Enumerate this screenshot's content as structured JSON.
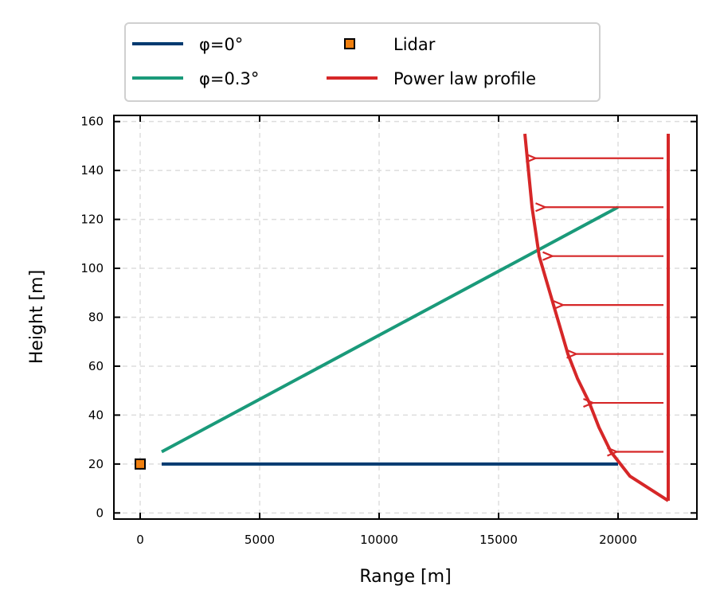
{
  "chart_data": {
    "type": "line",
    "title": "",
    "xlabel": "Range [m]",
    "ylabel": "Height [m]",
    "xlim": [
      -1100,
      23300
    ],
    "ylim": [
      -2.5,
      162.5
    ],
    "xticks": [
      0,
      5000,
      10000,
      15000,
      20000
    ],
    "yticks": [
      0,
      20,
      40,
      60,
      80,
      100,
      120,
      140,
      160
    ],
    "grid": true,
    "legend": {
      "position": "top-center",
      "entries": [
        {
          "label": "φ=0°",
          "color": "#003a70",
          "marker": "line"
        },
        {
          "label": "Lidar",
          "color": "#f07f0e",
          "marker": "square"
        },
        {
          "label": "φ=0.3°",
          "color": "#1a9a7a",
          "marker": "line"
        },
        {
          "label": "Power law profile",
          "color": "#d62728",
          "marker": "line"
        }
      ]
    },
    "series": [
      {
        "name": "φ=0°",
        "color": "#003a70",
        "x": [
          900,
          20000
        ],
        "y": [
          20,
          20
        ]
      },
      {
        "name": "φ=0.3°",
        "color": "#1a9a7a",
        "x": [
          900,
          20000
        ],
        "y": [
          25,
          125
        ]
      },
      {
        "name": "Lidar",
        "color": "#f07f0e",
        "type": "marker",
        "x": [
          0
        ],
        "y": [
          20
        ]
      },
      {
        "name": "Power law profile",
        "color": "#d62728",
        "x": [
          22100,
          20500,
          19700,
          19200,
          18800,
          18300,
          17900,
          17600,
          17300,
          17000,
          16700,
          16400,
          16100
        ],
        "y": [
          5,
          15,
          25,
          35,
          45,
          55,
          65,
          75,
          85,
          95,
          105,
          125,
          155
        ]
      }
    ],
    "reference_line": {
      "x": 22100,
      "y": [
        5,
        155
      ],
      "color": "#d62728"
    },
    "arrows": {
      "color": "#d62728",
      "x_start": 21900,
      "items": [
        {
          "y": 25,
          "x_end": 19950
        },
        {
          "y": 45,
          "x_end": 18950
        },
        {
          "y": 65,
          "x_end": 18250
        },
        {
          "y": 85,
          "x_end": 17700
        },
        {
          "y": 105,
          "x_end": 17250
        },
        {
          "y": 125,
          "x_end": 16950
        },
        {
          "y": 145,
          "x_end": 16550
        }
      ]
    }
  }
}
